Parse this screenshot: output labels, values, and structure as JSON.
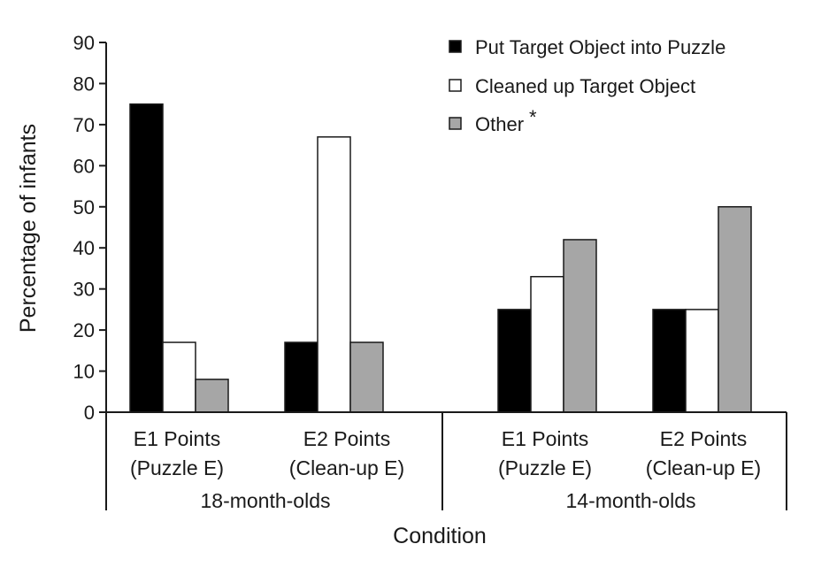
{
  "chart_data": {
    "type": "bar",
    "title": "",
    "xlabel": "Condition",
    "ylabel": "Percentage of infants",
    "ylim": [
      0,
      90
    ],
    "yticks": [
      0,
      10,
      20,
      30,
      40,
      50,
      60,
      70,
      80,
      90
    ],
    "grid": false,
    "legend_position": "top-right",
    "groups": [
      {
        "label": "18-month-olds",
        "categories": [
          {
            "line1": "E1 Points",
            "line2": "(Puzzle E)"
          },
          {
            "line1": "E2 Points",
            "line2": "(Clean-up E)"
          }
        ]
      },
      {
        "label": "14-month-olds",
        "categories": [
          {
            "line1": "E1 Points",
            "line2": "(Puzzle E)"
          },
          {
            "line1": "E2 Points",
            "line2": "(Clean-up E)"
          }
        ]
      }
    ],
    "series": [
      {
        "name": "Put Target Object into Puzzle",
        "color": "#000000",
        "values": [
          75,
          17,
          25,
          25
        ]
      },
      {
        "name": "Cleaned up Target Object",
        "color": "#ffffff",
        "values": [
          17,
          67,
          33,
          25
        ]
      },
      {
        "name": "Other",
        "color": "#a6a6a6",
        "values": [
          8,
          17,
          42,
          50
        ]
      }
    ],
    "legend_note": "*"
  }
}
